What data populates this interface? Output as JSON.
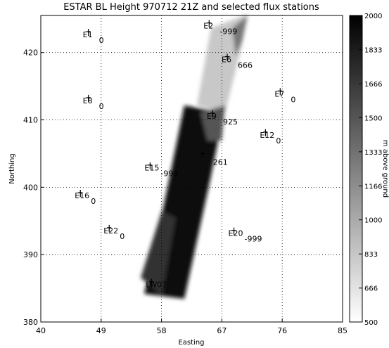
{
  "chart_data": {
    "type": "scatter",
    "title": "ESTAR BL Height 970712 21Z and selected flux stations",
    "x_label": "Easting",
    "y_label": "Northing",
    "xlim": [
      40,
      85
    ],
    "xticks": [
      40,
      49,
      58,
      67,
      76,
      85
    ],
    "ylim": [
      380,
      425.5
    ],
    "yticks": [
      380,
      390,
      400,
      410,
      420
    ],
    "grid": true,
    "stations": [
      {
        "name": "E1",
        "easting": 47.1,
        "northing": 423.1,
        "value": 0
      },
      {
        "name": "E2",
        "easting": 65.1,
        "northing": 424.4,
        "value": -999
      },
      {
        "name": "E6",
        "easting": 67.8,
        "northing": 419.4,
        "value": 666
      },
      {
        "name": "E7",
        "easting": 75.7,
        "northing": 414.3,
        "value": 0
      },
      {
        "name": "E8",
        "easting": 47.1,
        "northing": 413.3,
        "value": 0
      },
      {
        "name": "E9",
        "easting": 65.6,
        "northing": 411.0,
        "value": 925
      },
      {
        "name": "E12",
        "easting": 73.5,
        "northing": 408.2,
        "value": 0
      },
      {
        "name": "E15",
        "easting": 56.3,
        "northing": 403.3,
        "value": -999
      },
      {
        "name": null,
        "easting": 64.1,
        "northing": 405.0,
        "value": 261
      },
      {
        "name": "E16",
        "easting": 45.9,
        "northing": 399.2,
        "value": 0
      },
      {
        "name": "E20",
        "easting": 68.8,
        "northing": 393.6,
        "value": -999
      },
      {
        "name": "E22",
        "easting": 50.2,
        "northing": 394.0,
        "value": 0
      },
      {
        "name": "LW07",
        "easting": 56.5,
        "northing": 386.0,
        "value": null
      }
    ],
    "colorbar": {
      "range": [
        500,
        2000
      ],
      "ticks": [
        500,
        666,
        833,
        1000,
        1166,
        1333,
        1500,
        1666,
        1833,
        2000
      ],
      "label": "m above ground",
      "colors": [
        "#ffffff",
        "#000000"
      ]
    }
  }
}
